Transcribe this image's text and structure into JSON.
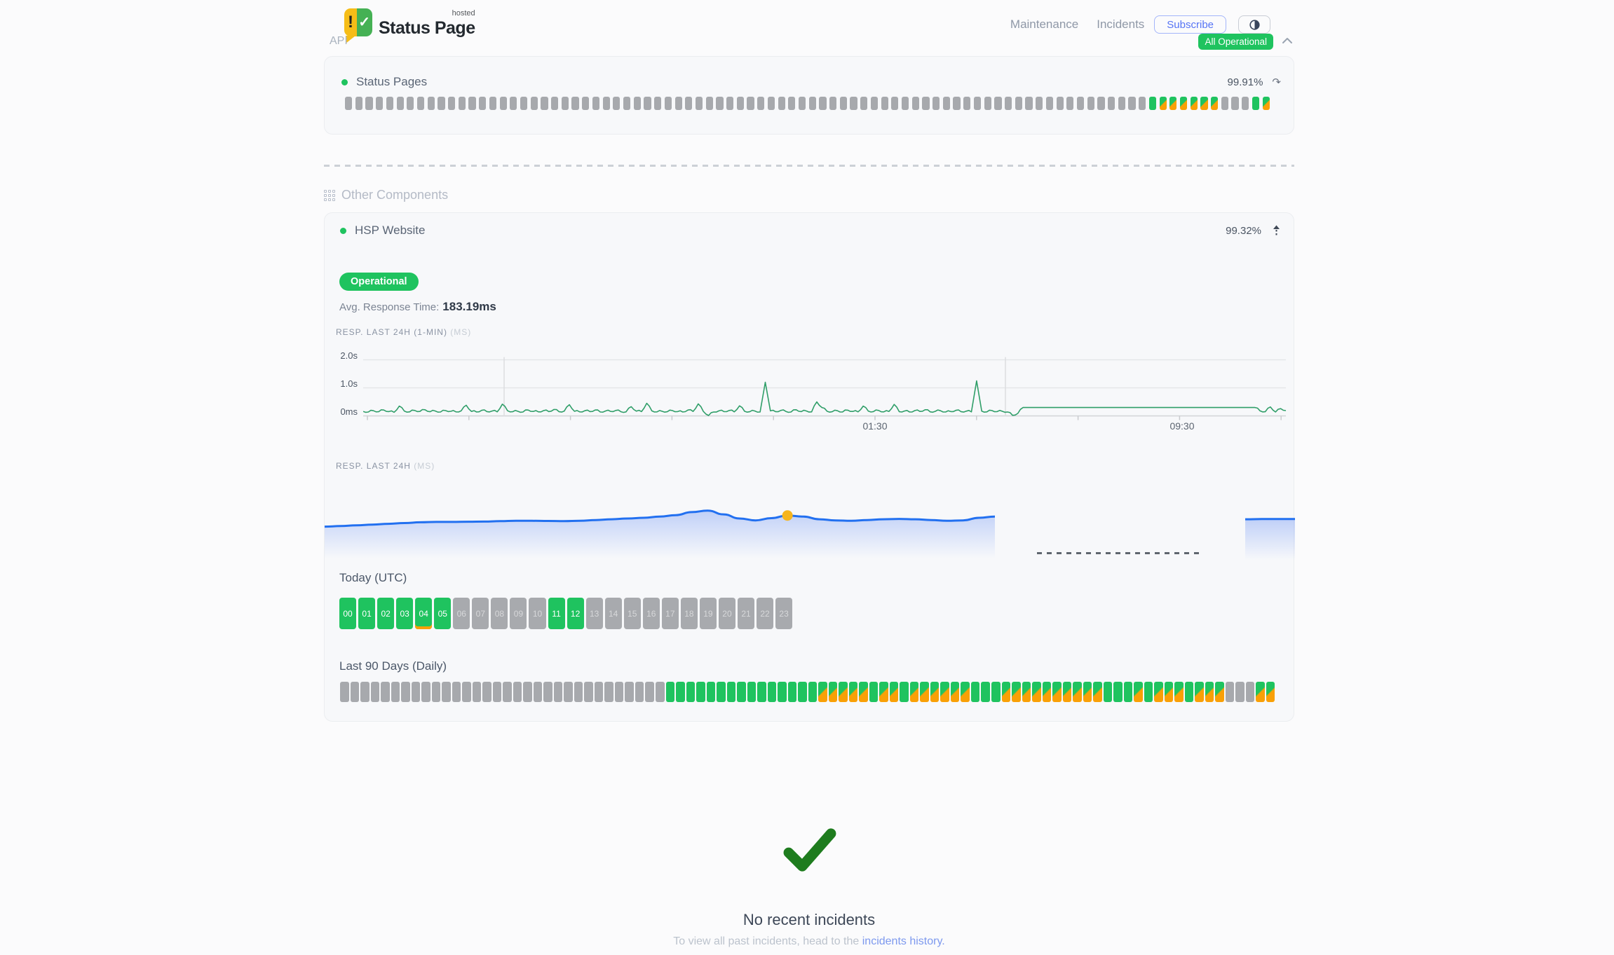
{
  "header": {
    "logo_super": "hosted",
    "logo_brand": "Status Page",
    "logo_exclaim": "!",
    "logo_check": "✓",
    "nav": [
      {
        "label": "Maintenance"
      },
      {
        "label": "Incidents"
      }
    ],
    "subscribe_label": "Subscribe"
  },
  "status_summary": {
    "label": "All Operational"
  },
  "sections": {
    "api": {
      "title": "API",
      "component": {
        "name": "Status Pages",
        "uptime": "99.91%",
        "refresh_icon": "↷"
      },
      "bars": "nnnnnnnnnnnnnnnnnnnnnnnnnnnnnnnnnnnnnnnnnnnnnnnnnnnnnnnnnnnnnnnnnnnnnnnnnnnnnnuddddddnnnud"
    },
    "other": {
      "title": "Other Components",
      "component": {
        "name": "HSP Website",
        "uptime": "99.32%",
        "status": "Operational",
        "avg_label": "Avg. Response Time:",
        "avg_value": "183.19ms"
      },
      "today_title": "Today (UTC)",
      "last90_title": "Last 90 Days (Daily)",
      "hours": [
        {
          "label": "00",
          "s": "u"
        },
        {
          "label": "01",
          "s": "u"
        },
        {
          "label": "02",
          "s": "u"
        },
        {
          "label": "03",
          "s": "u"
        },
        {
          "label": "04",
          "s": "u",
          "flag": true
        },
        {
          "label": "05",
          "s": "u"
        },
        {
          "label": "06",
          "s": "n"
        },
        {
          "label": "07",
          "s": "n"
        },
        {
          "label": "08",
          "s": "n"
        },
        {
          "label": "09",
          "s": "n"
        },
        {
          "label": "10",
          "s": "n"
        },
        {
          "label": "11",
          "s": "u"
        },
        {
          "label": "12",
          "s": "u"
        },
        {
          "label": "13",
          "s": "n"
        },
        {
          "label": "14",
          "s": "n"
        },
        {
          "label": "15",
          "s": "n"
        },
        {
          "label": "16",
          "s": "n"
        },
        {
          "label": "17",
          "s": "n"
        },
        {
          "label": "18",
          "s": "n"
        },
        {
          "label": "19",
          "s": "n"
        },
        {
          "label": "20",
          "s": "n"
        },
        {
          "label": "21",
          "s": "n"
        },
        {
          "label": "22",
          "s": "n"
        },
        {
          "label": "23",
          "s": "n"
        }
      ],
      "days90": "nnnnnnnnnnnnnnnnnnnnnnnnnnnnnnnnuuuuuuuuuuuuuuuddddduddudddddduuudddddddddduuududddudddnnndd"
    }
  },
  "chart_data": [
    {
      "type": "line",
      "title": "RESP. LAST 24H (1-MIN)",
      "unit": "(MS)",
      "ylabel_ticks": [
        "2.0s",
        "1.0s",
        "0ms"
      ],
      "ymax_ms": 2000,
      "xtick_labels": [
        "01:30",
        "09:30"
      ],
      "line_color": "#2f9e68",
      "values_ms": [
        160,
        140,
        185,
        150,
        210,
        155,
        130,
        350,
        170,
        145,
        195,
        160,
        220,
        150,
        175,
        140,
        190,
        165,
        145,
        180,
        380,
        160,
        140,
        200,
        155,
        175,
        145,
        420,
        185,
        150,
        165,
        140,
        210,
        160,
        145,
        190,
        155,
        230,
        150,
        170,
        400,
        165,
        145,
        185,
        155,
        210,
        140,
        175,
        160,
        195,
        150,
        145,
        330,
        170,
        155,
        450,
        180,
        145,
        165,
        150,
        190,
        155,
        140,
        210,
        160,
        430,
        160,
        15,
        140,
        180,
        155,
        195,
        145,
        360,
        165,
        150,
        175,
        140,
        1200,
        180,
        150,
        195,
        160,
        140,
        220,
        155,
        175,
        145,
        500,
        300,
        165,
        150,
        185,
        140,
        205,
        160,
        145,
        350,
        170,
        155,
        195,
        145,
        160,
        410,
        150,
        175,
        140,
        190,
        160,
        220,
        145,
        165,
        185,
        140,
        155,
        200,
        150,
        170,
        145,
        1250,
        170,
        145,
        190,
        155,
        165,
        140,
        20,
        90,
        300,
        300,
        300,
        300,
        300,
        300,
        300,
        300,
        300,
        300,
        300,
        300,
        300,
        300,
        300,
        300,
        300,
        300,
        300,
        300,
        300,
        300,
        300,
        300,
        300,
        300,
        300,
        300,
        300,
        300,
        300,
        300,
        300,
        300,
        300,
        300,
        300,
        300,
        300,
        300,
        300,
        300,
        300,
        300,
        300,
        300,
        180,
        150,
        320,
        140,
        260,
        190
      ]
    },
    {
      "type": "area",
      "title": "RESP. LAST 24H",
      "unit": "(MS)",
      "line_color": "#2270f0",
      "marker_color": "#f6b51e",
      "main_values_ms": [
        405,
        408,
        412,
        416,
        420,
        424,
        428,
        430,
        430,
        431,
        432,
        434,
        436,
        436,
        435,
        434,
        436,
        440,
        444,
        448,
        452,
        458,
        466,
        482,
        490,
        470,
        448,
        438,
        450,
        464,
        458,
        444,
        438,
        436,
        440,
        444,
        446,
        444,
        440,
        436,
        438,
        452,
        458
      ],
      "tail_values_ms": [
        444,
        445,
        445,
        445
      ],
      "marker": {
        "index": 29,
        "value_ms": 464
      }
    }
  ],
  "footer": {
    "title": "No recent incidents",
    "caption": "To view all past incidents, head to the",
    "link": "incidents history."
  }
}
